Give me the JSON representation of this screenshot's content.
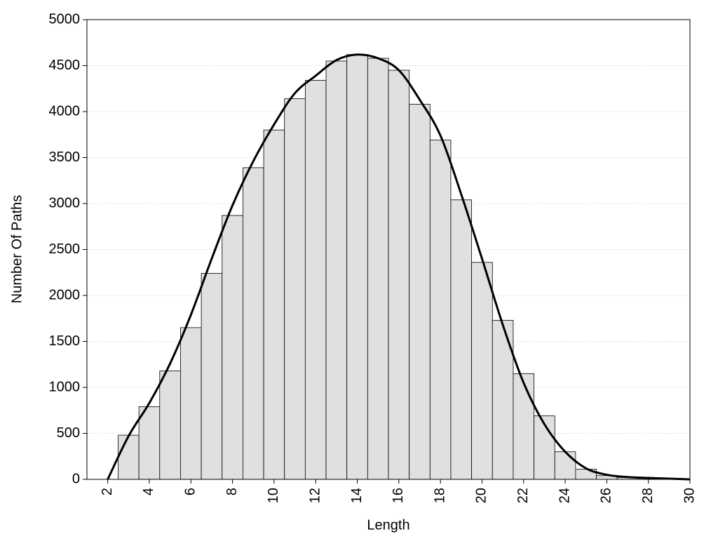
{
  "chart_data": {
    "type": "histogram",
    "x_label": "Length",
    "y_label": "Number Of Paths",
    "bins": [
      2.5,
      3.5,
      4.5,
      5.5,
      6.5,
      7.5,
      8.5,
      9.5,
      10.5,
      11.5,
      12.5,
      13.5,
      14.5,
      15.5,
      16.5,
      17.5,
      18.5,
      19.5,
      20.5,
      21.5,
      22.5,
      23.5,
      24.5,
      25.5,
      26.5,
      27.5,
      28.5
    ],
    "values": [
      480,
      790,
      1180,
      1650,
      2240,
      2870,
      3390,
      3800,
      4140,
      4340,
      4550,
      4620,
      4580,
      4450,
      4080,
      3690,
      3040,
      2360,
      1730,
      1150,
      690,
      300,
      110,
      40,
      20,
      10
    ],
    "color": "#e0e0e0",
    "overlay": {
      "type": "line",
      "color": "#000000",
      "x": [
        2,
        3,
        4,
        5,
        6,
        7,
        8,
        9,
        10,
        11,
        12,
        13,
        14,
        15,
        16,
        17,
        18,
        19,
        20,
        21,
        22,
        23,
        24,
        25,
        26,
        27,
        28,
        29,
        30
      ],
      "values": [
        0,
        470,
        830,
        1260,
        1790,
        2400,
        2980,
        3460,
        3860,
        4200,
        4390,
        4560,
        4620,
        4580,
        4450,
        4130,
        3740,
        3100,
        2400,
        1680,
        1050,
        600,
        300,
        120,
        50,
        25,
        15,
        8,
        0
      ]
    },
    "xlim": [
      1,
      30
    ],
    "ylim": [
      0,
      5000
    ],
    "xticks": [
      2,
      4,
      6,
      8,
      10,
      12,
      14,
      16,
      18,
      20,
      22,
      24,
      26,
      28,
      30
    ],
    "yticks": [
      0,
      500,
      1000,
      1500,
      2000,
      2500,
      3000,
      3500,
      4000,
      4500,
      5000
    ],
    "grid": true
  }
}
